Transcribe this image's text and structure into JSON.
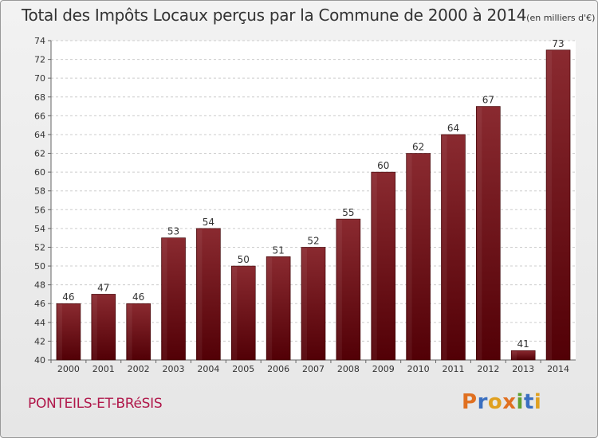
{
  "chart_data": {
    "type": "bar",
    "title": "Total des Impôts Locaux perçus par la Commune de 2000 à 2014",
    "subtitle": "(en milliers d'€)",
    "categories": [
      "2000",
      "2001",
      "2002",
      "2003",
      "2004",
      "2005",
      "2006",
      "2007",
      "2008",
      "2009",
      "2010",
      "2011",
      "2012",
      "2013",
      "2014"
    ],
    "values": [
      46,
      47,
      46,
      53,
      54,
      50,
      51,
      52,
      55,
      60,
      62,
      64,
      67,
      41,
      73
    ],
    "ylim": [
      40,
      74
    ],
    "yticks": [
      40,
      42,
      44,
      46,
      48,
      50,
      52,
      54,
      56,
      58,
      60,
      62,
      64,
      66,
      68,
      70,
      72,
      74
    ],
    "xlabel": "",
    "ylabel": "",
    "grid": true,
    "bar_color": "#7a1a1f"
  },
  "commune": "PONTEILS-ET-BRéSIS",
  "logo": {
    "letters": [
      "P",
      "r",
      "o",
      "x",
      "i",
      "t",
      "i"
    ],
    "colors": [
      "#e07020",
      "#3a6fc0",
      "#e0a020",
      "#e07020",
      "#60a030",
      "#3a6fc0",
      "#e0a020"
    ]
  }
}
